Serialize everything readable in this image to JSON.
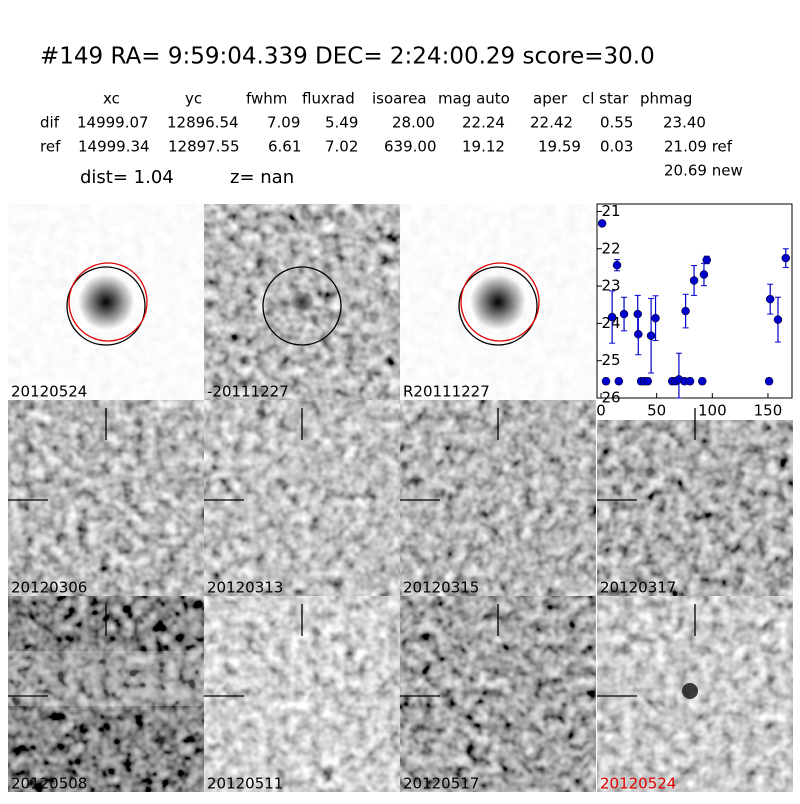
{
  "header": {
    "title": "#149   RA= 9:59:04.339 DEC= 2:24:00.29      score=30.0"
  },
  "table": {
    "columns": [
      "xc",
      "yc",
      "fwhm",
      "fluxrad",
      "isoarea",
      "mag auto",
      "aper",
      "cl star",
      "phmag"
    ],
    "rows": [
      [
        "dif",
        "14999.07",
        "12896.54",
        "7.09",
        "5.49",
        "28.00",
        "22.24",
        "22.42",
        "0.55",
        "23.40"
      ],
      [
        "ref",
        "14999.34",
        "12897.55",
        "6.61",
        "7.02",
        "639.00",
        "19.12",
        "19.59",
        "0.03",
        "21.09 ref"
      ]
    ],
    "extra": "20.69 new",
    "dist": "dist=  1.04",
    "z": "z=   nan"
  },
  "panels": {
    "labels": [
      "20120524",
      "-20111227",
      "R20111227",
      "20120306",
      "20120313",
      "20120315",
      "20120317",
      "20120508",
      "20120511",
      "20120517",
      "20120524"
    ]
  },
  "chart_data": {
    "type": "scatter",
    "color": "#0000cc",
    "marker": "circle",
    "x": [
      1,
      4.5,
      10,
      14.4,
      16,
      20.7,
      33,
      33.5,
      36,
      39,
      42,
      45,
      49,
      64,
      67,
      70,
      75,
      76,
      80,
      83.6,
      91,
      92.5,
      95,
      151,
      152,
      159,
      166
    ],
    "values": [
      21.32,
      25.55,
      23.83,
      22.44,
      25.55,
      23.75,
      23.75,
      24.29,
      25.55,
      25.55,
      25.55,
      24.33,
      23.86,
      25.55,
      25.55,
      25.5,
      25.55,
      23.67,
      25.55,
      22.85,
      25.55,
      22.69,
      22.3,
      25.55,
      23.35,
      23.9,
      22.25
    ],
    "errors": [
      0.05,
      0.08,
      0.7,
      0.15,
      0.08,
      0.45,
      0.5,
      0.55,
      0.08,
      0.08,
      0.08,
      1.0,
      0.6,
      0.08,
      0.08,
      0.7,
      0.08,
      0.45,
      0.08,
      0.4,
      0.08,
      0.3,
      0.1,
      0.08,
      0.4,
      0.6,
      0.25
    ],
    "xlim": [
      -3.6,
      171.6
    ],
    "xticks": [
      0,
      50,
      100,
      150
    ],
    "ylim": [
      20.8,
      26
    ],
    "yticks": [
      21,
      22,
      23,
      24,
      25,
      26
    ],
    "y_inverted": true
  }
}
